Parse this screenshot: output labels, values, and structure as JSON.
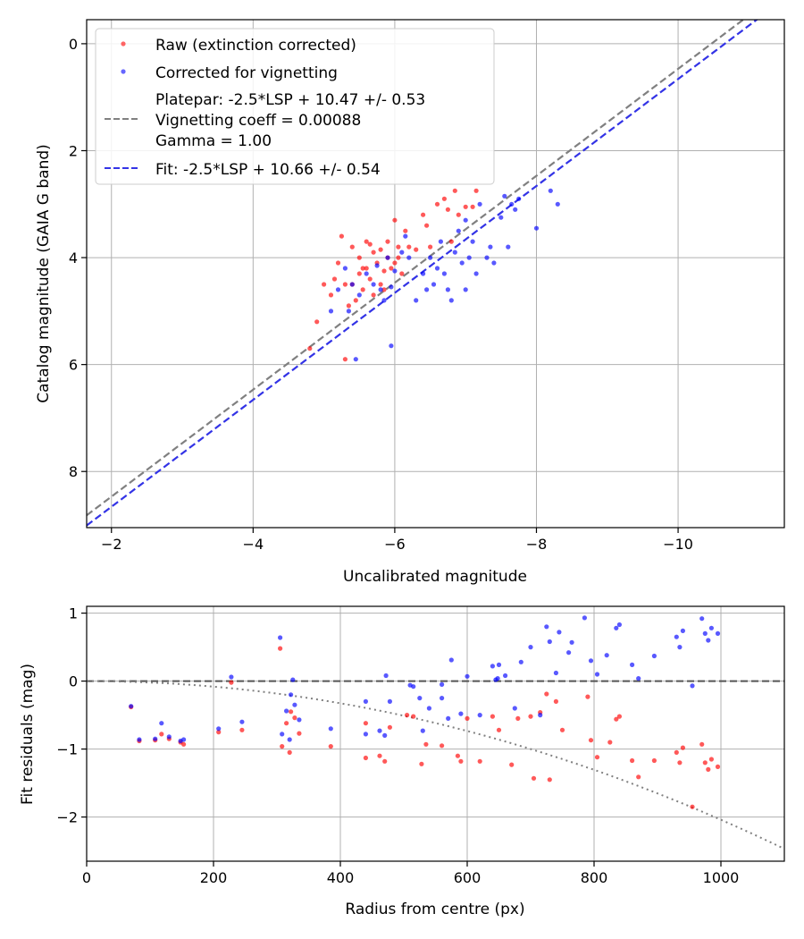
{
  "chart_data": [
    {
      "type": "scatter",
      "xlabel": "Uncalibrated magnitude",
      "ylabel": "Catalog magnitude (GAIA G band)",
      "xlim": [
        -1.65,
        -11.5
      ],
      "ylim": [
        9.05,
        -0.45
      ],
      "x_ticks": [
        -2,
        -4,
        -6,
        -8,
        -10
      ],
      "x_tick_labels": [
        "−2",
        "−4",
        "−6",
        "−8",
        "−10"
      ],
      "y_ticks": [
        0,
        2,
        4,
        6,
        8
      ],
      "y_tick_labels": [
        "0",
        "2",
        "4",
        "6",
        "8"
      ],
      "grid": true,
      "legend_position": "top-left",
      "legend": {
        "raw_label": "Raw (extinction corrected)",
        "corrected_label": "Corrected for vignetting",
        "platepar_line1": "Platepar: -2.5*LSP + 10.47 +/- 0.53",
        "platepar_line2": "Vignetting coeff = 0.00088",
        "platepar_line3": "Gamma = 1.00",
        "fit_label": "Fit: -2.5*LSP + 10.66 +/- 0.54"
      },
      "lines": [
        {
          "name": "Platepar",
          "style": "dashed",
          "color": "#808080",
          "slope": 1.0,
          "intercept": 10.47
        },
        {
          "name": "Fit",
          "style": "dashed",
          "color": "#3333e6",
          "slope": 1.0,
          "intercept": 10.66
        }
      ],
      "series": [
        {
          "name": "Raw (extinction corrected)",
          "color": "#ff0000",
          "points": [
            [
              -4.8,
              5.7
            ],
            [
              -4.9,
              5.2
            ],
            [
              -5.0,
              4.5
            ],
            [
              -5.1,
              4.7
            ],
            [
              -5.15,
              4.4
            ],
            [
              -5.2,
              4.1
            ],
            [
              -5.25,
              3.6
            ],
            [
              -5.3,
              4.5
            ],
            [
              -5.3,
              5.9
            ],
            [
              -5.35,
              4.9
            ],
            [
              -5.4,
              3.8
            ],
            [
              -5.4,
              4.5
            ],
            [
              -5.45,
              4.8
            ],
            [
              -5.5,
              4.0
            ],
            [
              -5.5,
              4.3
            ],
            [
              -5.55,
              4.6
            ],
            [
              -5.6,
              3.7
            ],
            [
              -5.6,
              4.2
            ],
            [
              -5.65,
              4.4
            ],
            [
              -5.7,
              3.9
            ],
            [
              -5.7,
              4.7
            ],
            [
              -5.75,
              4.1
            ],
            [
              -5.8,
              3.85
            ],
            [
              -5.8,
              4.5
            ],
            [
              -5.85,
              4.6
            ],
            [
              -5.9,
              4.0
            ],
            [
              -5.9,
              3.7
            ],
            [
              -5.95,
              4.2
            ],
            [
              -6.0,
              3.3
            ],
            [
              -6.0,
              4.1
            ],
            [
              -6.05,
              3.8
            ],
            [
              -6.1,
              4.3
            ],
            [
              -6.15,
              3.5
            ],
            [
              -6.2,
              3.8
            ],
            [
              -6.3,
              3.85
            ],
            [
              -6.4,
              3.2
            ],
            [
              -6.45,
              3.4
            ],
            [
              -6.5,
              3.8
            ],
            [
              -6.6,
              3.0
            ],
            [
              -6.7,
              2.9
            ],
            [
              -6.75,
              3.1
            ],
            [
              -6.8,
              3.7
            ],
            [
              -6.85,
              2.75
            ],
            [
              -6.9,
              3.2
            ],
            [
              -7.0,
              3.05
            ],
            [
              -7.1,
              3.05
            ],
            [
              -7.15,
              2.75
            ],
            [
              -5.55,
              4.2
            ],
            [
              -5.65,
              3.75
            ],
            [
              -5.85,
              4.25
            ],
            [
              -6.05,
              4.0
            ]
          ]
        },
        {
          "name": "Corrected for vignetting",
          "color": "#0000ff",
          "points": [
            [
              -5.1,
              5.0
            ],
            [
              -5.2,
              4.6
            ],
            [
              -5.3,
              4.2
            ],
            [
              -5.4,
              4.5
            ],
            [
              -5.45,
              5.9
            ],
            [
              -5.5,
              4.7
            ],
            [
              -5.6,
              4.3
            ],
            [
              -5.7,
              4.5
            ],
            [
              -5.8,
              4.6
            ],
            [
              -5.85,
              4.8
            ],
            [
              -5.9,
              4.0
            ],
            [
              -5.95,
              4.55
            ],
            [
              -5.95,
              5.65
            ],
            [
              -6.0,
              4.25
            ],
            [
              -6.1,
              3.9
            ],
            [
              -6.2,
              4.0
            ],
            [
              -6.3,
              4.8
            ],
            [
              -6.4,
              4.3
            ],
            [
              -6.45,
              4.6
            ],
            [
              -6.5,
              4.0
            ],
            [
              -6.55,
              4.5
            ],
            [
              -6.6,
              4.2
            ],
            [
              -6.65,
              3.7
            ],
            [
              -6.7,
              4.3
            ],
            [
              -6.75,
              4.6
            ],
            [
              -6.8,
              4.8
            ],
            [
              -6.85,
              3.9
            ],
            [
              -6.9,
              3.5
            ],
            [
              -6.95,
              4.1
            ],
            [
              -7.0,
              3.3
            ],
            [
              -7.05,
              4.0
            ],
            [
              -7.1,
              3.7
            ],
            [
              -7.15,
              4.3
            ],
            [
              -7.2,
              3.0
            ],
            [
              -7.3,
              4.0
            ],
            [
              -7.35,
              3.8
            ],
            [
              -7.4,
              4.1
            ],
            [
              -7.5,
              3.25
            ],
            [
              -7.55,
              2.85
            ],
            [
              -7.6,
              3.8
            ],
            [
              -7.65,
              3.0
            ],
            [
              -7.7,
              3.1
            ],
            [
              -7.75,
              2.9
            ],
            [
              -8.0,
              3.45
            ],
            [
              -8.2,
              2.75
            ],
            [
              -8.3,
              3.0
            ],
            [
              -7.0,
              4.6
            ],
            [
              -5.35,
              5.0
            ],
            [
              -6.15,
              3.6
            ],
            [
              -5.75,
              4.15
            ]
          ]
        }
      ]
    },
    {
      "type": "scatter",
      "xlabel": "Radius from centre (px)",
      "ylabel": "Fit residuals (mag)",
      "xlim": [
        0,
        1100
      ],
      "ylim": [
        -2.65,
        1.1
      ],
      "x_ticks": [
        0,
        200,
        400,
        600,
        800,
        1000
      ],
      "x_tick_labels": [
        "0",
        "200",
        "400",
        "600",
        "800",
        "1000"
      ],
      "y_ticks": [
        1,
        0,
        -1,
        -2
      ],
      "y_tick_labels": [
        "1",
        "0",
        "−1",
        "−2"
      ],
      "grid": true,
      "reference_line": {
        "style": "dashed",
        "color": "#555555",
        "y": 0
      },
      "model_curve": {
        "style": "dotted",
        "color": "#808080",
        "curvature": -2.04e-06
      },
      "series": [
        {
          "name": "Raw (extinction corrected)",
          "color": "#ff0000",
          "points": [
            [
              70,
              -0.38
            ],
            [
              83,
              -0.88
            ],
            [
              108,
              -0.87
            ],
            [
              118,
              -0.78
            ],
            [
              130,
              -0.85
            ],
            [
              148,
              -0.9
            ],
            [
              153,
              -0.93
            ],
            [
              208,
              -0.75
            ],
            [
              228,
              -0.02
            ],
            [
              245,
              -0.72
            ],
            [
              305,
              0.48
            ],
            [
              308,
              -0.96
            ],
            [
              315,
              -0.62
            ],
            [
              320,
              -1.05
            ],
            [
              322,
              -0.45
            ],
            [
              328,
              -0.54
            ],
            [
              335,
              -0.77
            ],
            [
              385,
              -0.96
            ],
            [
              440,
              -1.13
            ],
            [
              440,
              -0.62
            ],
            [
              462,
              -1.1
            ],
            [
              470,
              -1.18
            ],
            [
              478,
              -0.68
            ],
            [
              505,
              -0.5
            ],
            [
              515,
              -0.52
            ],
            [
              528,
              -1.22
            ],
            [
              535,
              -0.93
            ],
            [
              560,
              -0.95
            ],
            [
              585,
              -1.1
            ],
            [
              590,
              -1.18
            ],
            [
              600,
              -0.55
            ],
            [
              620,
              -1.18
            ],
            [
              640,
              -0.52
            ],
            [
              650,
              -0.72
            ],
            [
              670,
              -1.23
            ],
            [
              680,
              -0.55
            ],
            [
              700,
              -0.52
            ],
            [
              705,
              -1.43
            ],
            [
              715,
              -0.46
            ],
            [
              725,
              -0.19
            ],
            [
              730,
              -1.45
            ],
            [
              740,
              -0.3
            ],
            [
              750,
              -0.72
            ],
            [
              790,
              -0.23
            ],
            [
              795,
              -0.87
            ],
            [
              805,
              -1.12
            ],
            [
              825,
              -0.9
            ],
            [
              835,
              -0.56
            ],
            [
              840,
              -0.52
            ],
            [
              860,
              -1.17
            ],
            [
              870,
              -1.41
            ],
            [
              895,
              -1.17
            ],
            [
              930,
              -1.05
            ],
            [
              935,
              -1.2
            ],
            [
              940,
              -0.98
            ],
            [
              955,
              -1.85
            ],
            [
              970,
              -0.93
            ],
            [
              975,
              -1.2
            ],
            [
              980,
              -1.3
            ],
            [
              985,
              -1.15
            ],
            [
              995,
              -1.26
            ]
          ]
        },
        {
          "name": "Corrected for vignetting",
          "color": "#0000ff",
          "points": [
            [
              70,
              -0.37
            ],
            [
              83,
              -0.86
            ],
            [
              108,
              -0.85
            ],
            [
              118,
              -0.62
            ],
            [
              130,
              -0.82
            ],
            [
              148,
              -0.88
            ],
            [
              153,
              -0.86
            ],
            [
              208,
              -0.7
            ],
            [
              228,
              0.06
            ],
            [
              245,
              -0.6
            ],
            [
              305,
              0.64
            ],
            [
              308,
              -0.78
            ],
            [
              315,
              -0.44
            ],
            [
              320,
              -0.86
            ],
            [
              322,
              -0.2
            ],
            [
              325,
              0.02
            ],
            [
              328,
              -0.35
            ],
            [
              335,
              -0.57
            ],
            [
              385,
              -0.7
            ],
            [
              440,
              -0.3
            ],
            [
              440,
              -0.78
            ],
            [
              462,
              -0.73
            ],
            [
              470,
              -0.8
            ],
            [
              472,
              0.08
            ],
            [
              478,
              -0.3
            ],
            [
              510,
              -0.06
            ],
            [
              515,
              -0.08
            ],
            [
              525,
              -0.25
            ],
            [
              530,
              -0.73
            ],
            [
              540,
              -0.4
            ],
            [
              560,
              -0.05
            ],
            [
              560,
              -0.25
            ],
            [
              570,
              -0.55
            ],
            [
              575,
              0.31
            ],
            [
              590,
              -0.48
            ],
            [
              600,
              0.07
            ],
            [
              620,
              -0.5
            ],
            [
              640,
              0.22
            ],
            [
              645,
              0.02
            ],
            [
              648,
              0.04
            ],
            [
              650,
              0.24
            ],
            [
              660,
              0.08
            ],
            [
              675,
              -0.4
            ],
            [
              685,
              0.28
            ],
            [
              700,
              0.5
            ],
            [
              715,
              -0.5
            ],
            [
              725,
              0.8
            ],
            [
              730,
              0.58
            ],
            [
              740,
              0.12
            ],
            [
              745,
              0.72
            ],
            [
              760,
              0.42
            ],
            [
              765,
              0.57
            ],
            [
              785,
              0.93
            ],
            [
              795,
              0.3
            ],
            [
              805,
              0.1
            ],
            [
              820,
              0.38
            ],
            [
              835,
              0.78
            ],
            [
              840,
              0.83
            ],
            [
              860,
              0.24
            ],
            [
              870,
              0.04
            ],
            [
              895,
              0.37
            ],
            [
              930,
              0.65
            ],
            [
              935,
              0.5
            ],
            [
              940,
              0.74
            ],
            [
              955,
              -0.07
            ],
            [
              970,
              0.92
            ],
            [
              975,
              0.7
            ],
            [
              980,
              0.6
            ],
            [
              985,
              0.78
            ],
            [
              995,
              0.7
            ]
          ]
        }
      ]
    }
  ]
}
